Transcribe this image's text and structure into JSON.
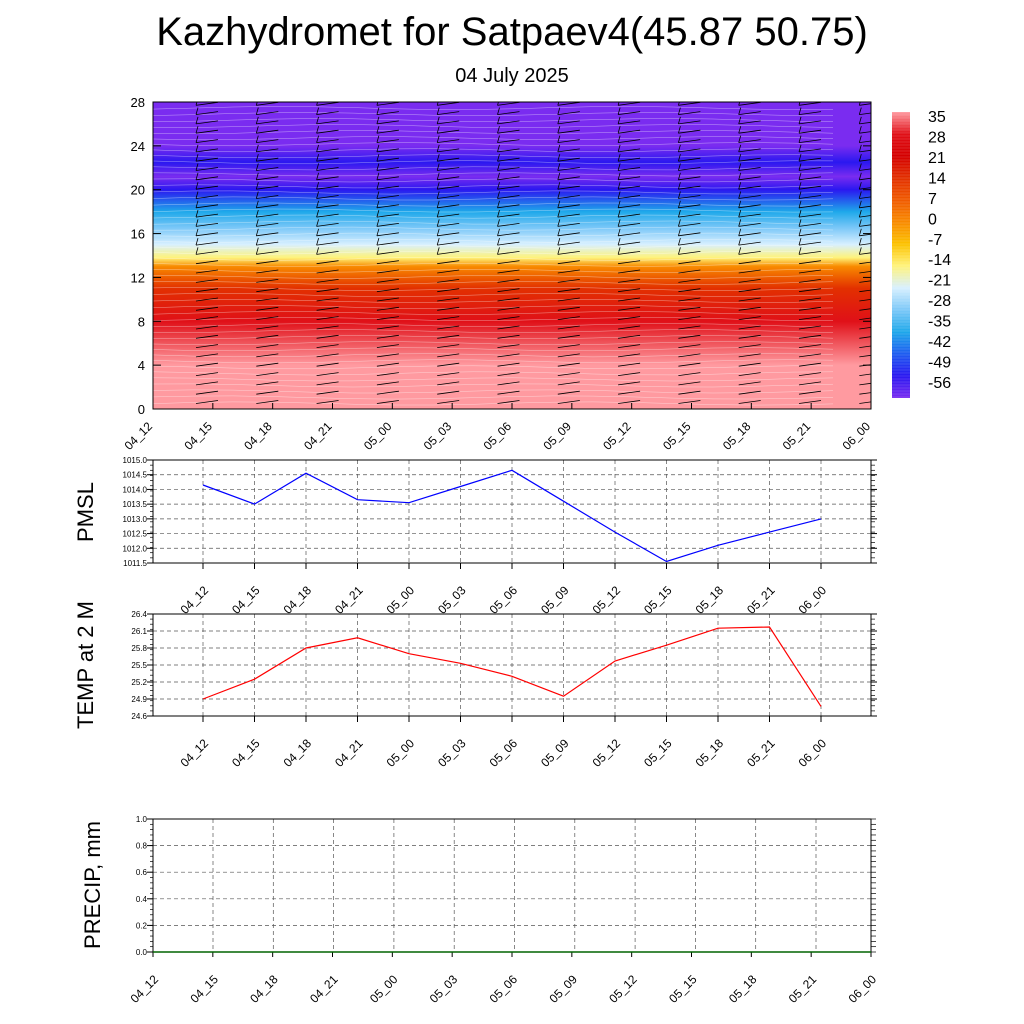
{
  "header": {
    "title": "Kazhydromet for Satpaev4(45.87 50.75)",
    "date": "04 July 2025"
  },
  "chart_data": [
    {
      "type": "heatmap",
      "title": "",
      "xlabel": "",
      "ylabel": "",
      "x_ticks": [
        "04_12",
        "04_15",
        "04_18",
        "04_21",
        "05_00",
        "05_03",
        "05_06",
        "05_09",
        "05_12",
        "05_15",
        "05_18",
        "05_21",
        "06_00"
      ],
      "y_ticks": [
        0,
        4,
        8,
        12,
        16,
        20,
        24,
        28
      ],
      "ylim": [
        0,
        28
      ],
      "colorbar": {
        "labels": [
          "35",
          "28",
          "21",
          "14",
          "7",
          "0",
          "-7",
          "-14",
          "-21",
          "-28",
          "-35",
          "-42",
          "-49",
          "-56"
        ],
        "colors": [
          "#ff9aa0",
          "#e01018",
          "#d40000",
          "#e23000",
          "#f05a00",
          "#f88a00",
          "#fcc200",
          "#fff37a",
          "#d8f0ff",
          "#7cc8f8",
          "#1ea8ea",
          "#1e5cf0",
          "#2a18f0",
          "#7a2cf0"
        ]
      },
      "contour_profile": {
        "heights": [
          0,
          4,
          8,
          11,
          13,
          13.8,
          15,
          16.5,
          18,
          20,
          21.2,
          22.5,
          24,
          28
        ],
        "temperatures": [
          35,
          30,
          24,
          12,
          -4,
          -14,
          -20,
          -30,
          -38,
          -48,
          -58,
          -52,
          -56,
          -60
        ]
      },
      "wind_barbs": "present"
    },
    {
      "type": "line",
      "ylabel": "PMSL",
      "x": [
        "04_12",
        "04_15",
        "04_18",
        "04_21",
        "05_00",
        "05_03",
        "05_06",
        "05_09",
        "05_12",
        "05_15",
        "05_18",
        "05_21",
        "06_00"
      ],
      "series": [
        {
          "color": "#0000ff",
          "values": [
            1014.15,
            1013.5,
            1014.55,
            1013.65,
            1013.55,
            1014.1,
            1014.65,
            1013.6,
            1012.55,
            1011.55,
            1012.1,
            1012.55,
            1013.0
          ]
        }
      ],
      "ylim": [
        1011.5,
        1015.0
      ],
      "y_ticks": [
        "1011.5",
        "1012.0",
        "1012.5",
        "1013.0",
        "1013.5",
        "1014.0",
        "1014.5",
        "1015.0"
      ],
      "grid": true
    },
    {
      "type": "line",
      "ylabel": "TEMP at 2 M",
      "x": [
        "04_12",
        "04_15",
        "04_18",
        "04_21",
        "05_00",
        "05_03",
        "05_06",
        "05_09",
        "05_12",
        "05_15",
        "05_18",
        "05_21",
        "06_00"
      ],
      "series": [
        {
          "color": "#ff0000",
          "values": [
            24.9,
            25.25,
            25.8,
            25.98,
            25.7,
            25.53,
            25.3,
            24.95,
            25.57,
            25.85,
            26.15,
            26.17,
            24.77
          ]
        }
      ],
      "ylim": [
        24.6,
        26.4
      ],
      "y_ticks": [
        "24.6",
        "24.9",
        "25.2",
        "25.5",
        "25.8",
        "26.1",
        "26.4"
      ],
      "grid": true
    },
    {
      "type": "line",
      "ylabel": "PRECIP, mm",
      "x": [
        "04_12",
        "04_15",
        "04_18",
        "04_21",
        "05_00",
        "05_03",
        "05_06",
        "05_09",
        "05_12",
        "05_15",
        "05_18",
        "05_21",
        "06_00"
      ],
      "series": [
        {
          "color": "#006400",
          "values": [
            0,
            0,
            0,
            0,
            0,
            0,
            0,
            0,
            0,
            0,
            0,
            0,
            0
          ]
        }
      ],
      "ylim": [
        0.0,
        1.0
      ],
      "y_ticks": [
        "0.0",
        "0.2",
        "0.4",
        "0.6",
        "0.8",
        "1.0"
      ],
      "grid": true
    }
  ]
}
